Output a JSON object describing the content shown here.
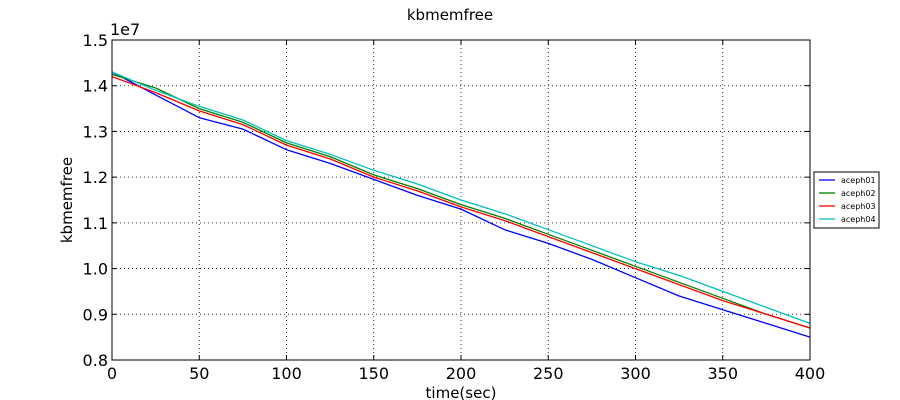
{
  "chart_data": {
    "type": "line",
    "title": "kbmemfree",
    "xlabel": "time(sec)",
    "ylabel": "kbmemfree",
    "y_offset_label": "1e7",
    "xlim": [
      0,
      400
    ],
    "ylim": [
      0.8,
      1.5
    ],
    "xticks": [
      0,
      50,
      100,
      150,
      200,
      250,
      300,
      350,
      400
    ],
    "yticks": [
      0.8,
      0.9,
      1.0,
      1.1,
      1.2,
      1.3,
      1.4,
      1.5
    ],
    "ytick_labels": [
      "0.8",
      "0.9",
      "1.0",
      "1.1",
      "1.2",
      "1.3",
      "1.4",
      "1.5"
    ],
    "grid": true,
    "legend_position": "right",
    "x": [
      0,
      25,
      50,
      75,
      100,
      125,
      150,
      175,
      200,
      225,
      250,
      275,
      300,
      325,
      350,
      375,
      400
    ],
    "series": [
      {
        "name": "aceph01",
        "color": "#0000ff",
        "values": [
          1.43,
          1.38,
          1.33,
          1.305,
          1.26,
          1.23,
          1.195,
          1.16,
          1.13,
          1.085,
          1.055,
          1.02,
          0.98,
          0.94,
          0.91,
          0.88,
          0.85
        ]
      },
      {
        "name": "aceph02",
        "color": "#008000",
        "values": [
          1.425,
          1.395,
          1.35,
          1.32,
          1.275,
          1.245,
          1.205,
          1.175,
          1.14,
          1.11,
          1.075,
          1.04,
          1.005,
          0.97,
          0.935,
          0.9,
          0.87
        ]
      },
      {
        "name": "aceph03",
        "color": "#ff0000",
        "values": [
          1.42,
          1.385,
          1.345,
          1.315,
          1.27,
          1.24,
          1.2,
          1.17,
          1.135,
          1.105,
          1.07,
          1.035,
          1.0,
          0.965,
          0.93,
          0.9,
          0.87
        ]
      },
      {
        "name": "aceph04",
        "color": "#00bfbf",
        "values": [
          1.43,
          1.39,
          1.355,
          1.325,
          1.28,
          1.25,
          1.215,
          1.185,
          1.15,
          1.12,
          1.085,
          1.05,
          1.015,
          0.985,
          0.95,
          0.915,
          0.88
        ]
      }
    ]
  }
}
